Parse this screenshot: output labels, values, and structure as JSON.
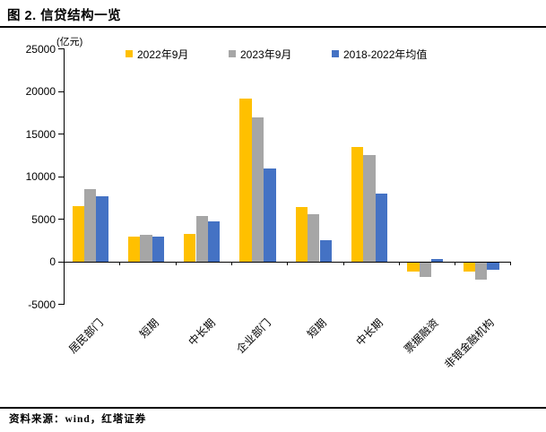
{
  "title": "图 2. 信贷结构一览",
  "source": "资料来源：wind，红塔证券",
  "chart_data": {
    "type": "bar",
    "title": "图 2. 信贷结构一览",
    "unit_label": "(亿元)",
    "categories": [
      "居民部门",
      "短期",
      "中长期",
      "企业部门",
      "短期",
      "中长期",
      "票据融资",
      "非银金融机构"
    ],
    "series": [
      {
        "name": "2022年9月",
        "color": "#FFC000",
        "values": [
          6500,
          2900,
          3300,
          19200,
          6400,
          13500,
          -1000,
          -1100
        ]
      },
      {
        "name": "2023年9月",
        "color": "#A6A6A6",
        "values": [
          8500,
          3200,
          5400,
          16900,
          5600,
          12500,
          -1700,
          -2000
        ]
      },
      {
        "name": "2018-2022年均值",
        "color": "#4472C4",
        "values": [
          7700,
          3000,
          4700,
          11000,
          2500,
          8000,
          300,
          -800
        ]
      }
    ],
    "y_ticks": [
      25000,
      20000,
      15000,
      10000,
      5000,
      0,
      -5000
    ],
    "ylim": [
      -5000,
      25000
    ],
    "xlabel": "",
    "ylabel": "亿元",
    "grid": false,
    "legend_position": "top"
  }
}
